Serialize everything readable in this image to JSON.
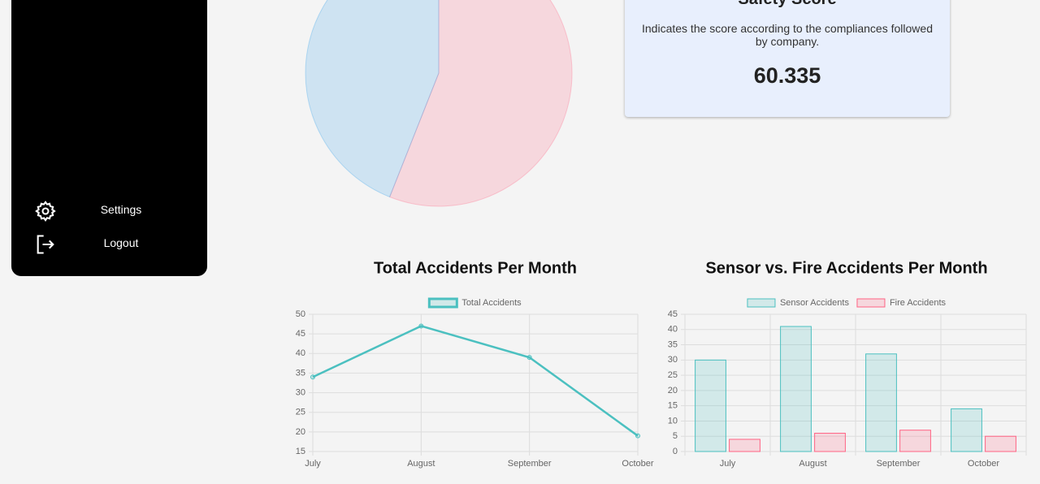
{
  "sidebar": {
    "items": [
      {
        "label": "Settings"
      },
      {
        "label": "Logout"
      }
    ]
  },
  "safety_card": {
    "title": "Safety Score",
    "description": "Indicates the score according to the compliances followed by company.",
    "score": 60.335
  },
  "chart_data": [
    {
      "type": "pie",
      "values": [
        56,
        44
      ],
      "colors": [
        "#ff6384",
        "#36a2eb"
      ]
    },
    {
      "type": "line",
      "title": "Total Accidents Per Month",
      "categories": [
        "July",
        "August",
        "September",
        "October"
      ],
      "series": [
        {
          "name": "Total Accidents",
          "color": "#4bc0c0",
          "values": [
            34,
            47,
            39,
            19
          ]
        }
      ],
      "ylim": [
        15,
        50
      ],
      "yticks": [
        15,
        20,
        25,
        30,
        35,
        40,
        45,
        50
      ],
      "grid": true
    },
    {
      "type": "bar",
      "title": "Sensor vs. Fire Accidents Per Month",
      "categories": [
        "July",
        "August",
        "September",
        "October"
      ],
      "series": [
        {
          "name": "Sensor Accidents",
          "color": "#4bc0c0",
          "values": [
            30,
            41,
            32,
            14
          ]
        },
        {
          "name": "Fire Accidents",
          "color": "#ff6384",
          "values": [
            4,
            6,
            7,
            5
          ]
        }
      ],
      "ylim": [
        0,
        45
      ],
      "yticks": [
        0,
        5,
        10,
        15,
        20,
        25,
        30,
        35,
        40,
        45
      ],
      "grid": true
    }
  ]
}
